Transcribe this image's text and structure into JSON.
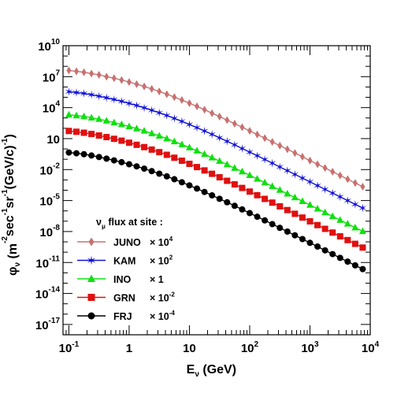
{
  "chart_data": {
    "type": "line",
    "title": "",
    "xlabel": {
      "main": "E",
      "sub": "ν",
      "unit": " (GeV)"
    },
    "ylabel": {
      "main": "φ",
      "sub": "ν",
      "unit_parts": [
        " (m",
        "-2",
        "sec",
        "-1",
        "sr",
        "-1",
        "(GeV/c)",
        "-1",
        ")"
      ]
    },
    "xscale": "log",
    "yscale": "log",
    "xlim": [
      0.08,
      10000
    ],
    "ylim": [
      1e-18,
      10000000000.0
    ],
    "x_ticks": [
      {
        "value": 0.1,
        "base": "10",
        "exp": "-1"
      },
      {
        "value": 1,
        "base": "1",
        "exp": ""
      },
      {
        "value": 10,
        "base": "10",
        "exp": ""
      },
      {
        "value": 100,
        "base": "10",
        "exp": "2"
      },
      {
        "value": 1000,
        "base": "10",
        "exp": "3"
      },
      {
        "value": 10000,
        "base": "10",
        "exp": "4"
      }
    ],
    "y_ticks": [
      {
        "value": 1e-17,
        "base": "10",
        "exp": "-17"
      },
      {
        "value": 1e-14,
        "base": "10",
        "exp": "-14"
      },
      {
        "value": 1e-11,
        "base": "10",
        "exp": "-11"
      },
      {
        "value": 1e-08,
        "base": "10",
        "exp": "-8"
      },
      {
        "value": 1e-05,
        "base": "10",
        "exp": "-5"
      },
      {
        "value": 0.01,
        "base": "10",
        "exp": "-2"
      },
      {
        "value": 10,
        "base": "10",
        "exp": ""
      },
      {
        "value": 10000.0,
        "base": "10",
        "exp": "4"
      },
      {
        "value": 10000000.0,
        "base": "10",
        "exp": "7"
      },
      {
        "value": 10000000000.0,
        "base": "10",
        "exp": "10"
      }
    ],
    "grid": false,
    "legend": {
      "placement": "bottom-left",
      "header": {
        "main": "ν",
        "sub": "μ",
        "text": " flux at site :"
      }
    },
    "x": [
      0.1,
      0.1334,
      0.1778,
      0.2371,
      0.3162,
      0.4217,
      0.5623,
      0.7499,
      1,
      1.3335,
      1.7783,
      2.3714,
      3.1623,
      4.217,
      5.6234,
      7.4989,
      10,
      13.335,
      17.783,
      23.714,
      31.623,
      42.17,
      56.234,
      74.989,
      100,
      133.35,
      177.83,
      237.14,
      316.23,
      421.7,
      562.34,
      749.89,
      1000,
      1333.5,
      1778.3,
      2371.4,
      3162.3,
      4217,
      5623.4,
      7498.9
    ],
    "series": [
      {
        "name": "JUNO",
        "factor": {
          "text": "× 10",
          "exp": "4"
        },
        "color": "#c87070",
        "marker": "diamond",
        "values": [
          40000000.0,
          33000000.0,
          26600000.0,
          20000000.0,
          15000000.0,
          10000000.0,
          7100000.0,
          4700000.0,
          3000000.0,
          1880000.0,
          1130000.0,
          650000.0,
          370000.0,
          200000.0,
          105000.0,
          54000.0,
          27000.0,
          13200.0,
          6300.0,
          2900.0,
          1350.0,
          620,
          280,
          126,
          56,
          25,
          11,
          4.8,
          2.1,
          0.92,
          0.4,
          0.175,
          0.075,
          0.033,
          0.0143,
          0.0062,
          0.0027,
          0.00118,
          0.00051,
          0.00022
        ]
      },
      {
        "name": "KAM",
        "factor": {
          "text": "× 10",
          "exp": "2"
        },
        "color": "#1010d8",
        "marker": "star",
        "values": [
          350000.0,
          290000.0,
          240000.0,
          180000.0,
          130000.0,
          90000.0,
          62000.0,
          41000.0,
          26000.0,
          16200.0,
          9700.0,
          5600.0,
          3200.0,
          1750.0,
          920,
          470,
          235,
          115,
          55,
          26,
          12,
          5.5,
          2.5,
          1.1,
          0.49,
          0.22,
          0.096,
          0.042,
          0.018,
          0.0079,
          0.0034,
          0.0015,
          0.00065,
          0.00028,
          0.000122,
          5.3e-05,
          2.3e-05,
          1e-05,
          4.3e-06,
          1.9e-06
        ]
      },
      {
        "name": "INO",
        "factor": {
          "text": "× 1",
          "exp": ""
        },
        "color": "#10e010",
        "marker": "triangle",
        "values": [
          2000.0,
          1700.0,
          1400.0,
          1050.0,
          760,
          530,
          360,
          240,
          150,
          94,
          56,
          32,
          18.5,
          10,
          5.3,
          2.7,
          1.36,
          0.66,
          0.31,
          0.145,
          0.067,
          0.031,
          0.014,
          0.0063,
          0.0028,
          0.00125,
          0.00055,
          0.00024,
          0.000105,
          4.5e-05,
          1.95e-05,
          8.5e-06,
          3.7e-06,
          1.6e-06,
          7e-07,
          3e-07,
          1.3e-07,
          5.6e-08,
          2.4e-08,
          1.05e-08
        ]
      },
      {
        "name": "GRN",
        "factor": {
          "text": "× 10",
          "exp": "-2"
        },
        "color": "#e01010",
        "marker": "square",
        "values": [
          55,
          46,
          37,
          28,
          20,
          14,
          9.5,
          6.3,
          4.0,
          2.5,
          1.5,
          0.86,
          0.49,
          0.27,
          0.14,
          0.072,
          0.036,
          0.0175,
          0.0083,
          0.0039,
          0.0018,
          0.00082,
          0.00037,
          0.000166,
          7.4e-05,
          3.3e-05,
          1.45e-05,
          6.3e-06,
          2.75e-06,
          1.2e-06,
          5.2e-07,
          2.25e-07,
          9.7e-08,
          4.2e-08,
          1.82e-08,
          7.9e-09,
          3.4e-09,
          1.48e-09,
          6.4e-10,
          2.8e-10
        ]
      },
      {
        "name": "FRJ",
        "factor": {
          "text": "× 10",
          "exp": "-4"
        },
        "color": "#000000",
        "marker": "circle",
        "values": [
          0.45,
          0.38,
          0.31,
          0.23,
          0.165,
          0.115,
          0.078,
          0.052,
          0.033,
          0.0205,
          0.0123,
          0.0071,
          0.004,
          0.0022,
          0.00116,
          0.00059,
          0.000295,
          0.000144,
          6.8e-05,
          3.2e-05,
          1.48e-05,
          6.8e-06,
          3.1e-06,
          1.38e-06,
          6.1e-07,
          2.7e-07,
          1.2e-07,
          5.2e-08,
          2.27e-08,
          9.9e-09,
          4.3e-09,
          1.86e-09,
          8e-10,
          3.5e-10,
          1.5e-10,
          6.5e-11,
          2.8e-11,
          1.22e-11,
          5.3e-12,
          2.3e-12
        ]
      }
    ]
  }
}
